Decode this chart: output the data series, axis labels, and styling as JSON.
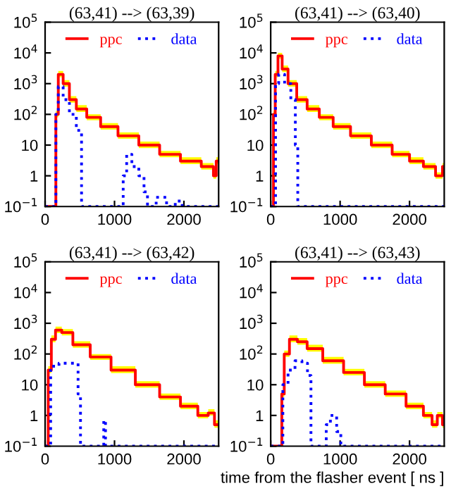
{
  "chart_data": [
    {
      "type": "step",
      "title": "(63,41) --> (63,39)",
      "log": "y",
      "xlim": [
        0,
        2500
      ],
      "ylim": [
        0.1,
        100000
      ],
      "xticks": [
        0,
        1000,
        2000
      ],
      "yticks": [
        {
          "value": 0.1,
          "label": "10$^{−1}$"
        },
        1,
        10,
        {
          "value": 100,
          "label": "10$^{2}$"
        },
        {
          "value": 1000,
          "label": "10$^{3}$"
        },
        {
          "value": 10000,
          "label": "10$^{4}$"
        },
        {
          "value": 100000,
          "label": "10$^{5}$"
        }
      ],
      "legend": "top",
      "grid": false,
      "series": [
        {
          "name": "ppc",
          "color": "#ff0000",
          "line_style": "solid",
          "x": [
            0,
            150,
            160,
            220,
            300,
            400,
            500,
            700,
            900,
            1200,
            1500,
            1800,
            2100,
            2400,
            2450,
            2480,
            2500
          ],
          "values": [
            0.1,
            0.1,
            100,
            2000,
            1000,
            300,
            150,
            80,
            40,
            20,
            10,
            5,
            3,
            2,
            1,
            3,
            3
          ],
          "lower": [
            0.1,
            0.1,
            80,
            1600,
            800,
            240,
            120,
            64,
            32,
            16,
            8,
            4,
            2.4,
            1.6,
            0.8,
            2.4,
            2.4
          ],
          "upper": [
            0.1,
            0.1,
            130,
            2600,
            1300,
            390,
            200,
            100,
            52,
            26,
            13,
            6.5,
            4,
            2.6,
            1.3,
            4,
            4
          ]
        },
        {
          "name": "data",
          "color": "#0000ff",
          "line_style": "dotted",
          "x": [
            0,
            150,
            160,
            220,
            300,
            400,
            500,
            550,
            1100,
            1150,
            1200,
            1300,
            1400,
            1450,
            1500,
            1700,
            1800,
            1950,
            2000,
            2500
          ],
          "values": [
            0.1,
            0.1,
            100,
            800,
            300,
            100,
            30,
            0.1,
            0.1,
            1,
            5,
            2,
            1,
            0.3,
            0.1,
            0.2,
            0.1,
            0.15,
            0.1,
            0.1
          ]
        }
      ]
    },
    {
      "type": "step",
      "title": "(63,41) --> (63,40)",
      "log": "y",
      "xlim": [
        0,
        2500
      ],
      "ylim": [
        0.1,
        100000
      ],
      "xticks": [
        0,
        1000,
        2000
      ],
      "yticks": [
        {
          "value": 0.1,
          "label": "10$^{−1}$"
        },
        1,
        10,
        {
          "value": 100,
          "label": "10$^{2}$"
        },
        {
          "value": 1000,
          "label": "10$^{3}$"
        },
        {
          "value": 10000,
          "label": "10$^{4}$"
        },
        {
          "value": 100000,
          "label": "10$^{5}$"
        }
      ],
      "legend": "top",
      "grid": false,
      "series": [
        {
          "name": "ppc",
          "color": "#ff0000",
          "line_style": "solid",
          "x": [
            0,
            30,
            50,
            80,
            130,
            200,
            300,
            450,
            600,
            800,
            1000,
            1300,
            1600,
            1900,
            2100,
            2300,
            2450,
            2500
          ],
          "values": [
            0.1,
            0.1,
            100,
            2000,
            8000,
            3000,
            1000,
            300,
            150,
            80,
            40,
            20,
            10,
            5,
            3,
            2,
            1,
            2
          ],
          "lower": [
            0.1,
            0.1,
            80,
            1600,
            6400,
            2400,
            800,
            240,
            120,
            64,
            32,
            16,
            8,
            4,
            2.4,
            1.6,
            0.8,
            1.6
          ],
          "upper": [
            0.1,
            0.1,
            130,
            2600,
            10000,
            3900,
            1300,
            390,
            200,
            100,
            52,
            26,
            13,
            6.5,
            4,
            2.6,
            1.3,
            2.6
          ]
        },
        {
          "name": "data",
          "color": "#0000ff",
          "line_style": "dotted",
          "x": [
            0,
            60,
            80,
            150,
            250,
            330,
            380,
            400,
            2500
          ],
          "values": [
            0.1,
            0.1,
            1000,
            2000,
            1000,
            300,
            10,
            0.1,
            0.1
          ]
        }
      ]
    },
    {
      "type": "step",
      "title": "(63,41) --> (63,42)",
      "log": "y",
      "xlim": [
        0,
        2500
      ],
      "ylim": [
        0.1,
        100000
      ],
      "xticks": [
        0,
        1000,
        2000
      ],
      "yticks": [
        {
          "value": 0.1,
          "label": "10$^{−1}$"
        },
        1,
        10,
        {
          "value": 100,
          "label": "10$^{2}$"
        },
        {
          "value": 1000,
          "label": "10$^{3}$"
        },
        {
          "value": 10000,
          "label": "10$^{4}$"
        },
        {
          "value": 100000,
          "label": "10$^{5}$"
        }
      ],
      "legend": "top",
      "grid": false,
      "series": [
        {
          "name": "ppc",
          "color": "#ff0000",
          "line_style": "solid",
          "x": [
            0,
            30,
            60,
            120,
            180,
            300,
            500,
            800,
            1100,
            1500,
            1800,
            2100,
            2300,
            2400,
            2480,
            2500
          ],
          "values": [
            0.1,
            0.1,
            30,
            300,
            600,
            500,
            200,
            80,
            30,
            10,
            4,
            2,
            1,
            1.2,
            0.5,
            0.5
          ],
          "lower": [
            0.1,
            0.1,
            24,
            240,
            480,
            400,
            160,
            64,
            24,
            8,
            3.2,
            1.6,
            0.8,
            1,
            0.4,
            0.4
          ],
          "upper": [
            0.1,
            0.1,
            40,
            400,
            780,
            650,
            260,
            100,
            40,
            13,
            5.2,
            2.6,
            1.3,
            1.6,
            0.7,
            0.7
          ]
        },
        {
          "name": "data",
          "color": "#0000ff",
          "line_style": "dotted",
          "x": [
            0,
            60,
            100,
            300,
            450,
            500,
            520,
            830,
            860,
            880,
            2500
          ],
          "values": [
            0.1,
            0.1,
            40,
            50,
            50,
            5,
            0.1,
            0.1,
            0.7,
            0.1,
            0.1
          ]
        }
      ]
    },
    {
      "type": "step",
      "title": "(63,41) --> (63,43)",
      "xlabel": "time from the flasher event [ ns ]",
      "log": "y",
      "xlim": [
        0,
        2500
      ],
      "ylim": [
        0.1,
        100000
      ],
      "xticks": [
        0,
        1000,
        2000
      ],
      "yticks": [
        {
          "value": 0.1,
          "label": "10$^{−1}$"
        },
        1,
        10,
        {
          "value": 100,
          "label": "10$^{2}$"
        },
        {
          "value": 1000,
          "label": "10$^{3}$"
        },
        {
          "value": 10000,
          "label": "10$^{4}$"
        },
        {
          "value": 100000,
          "label": "10$^{5}$"
        }
      ],
      "legend": "top",
      "grid": false,
      "series": [
        {
          "name": "ppc",
          "color": "#ff0000",
          "line_style": "solid",
          "x": [
            0,
            150,
            170,
            220,
            320,
            450,
            600,
            900,
            1200,
            1500,
            1800,
            2100,
            2300,
            2350,
            2450,
            2500
          ],
          "values": [
            0.1,
            0.1,
            5,
            100,
            300,
            250,
            150,
            60,
            25,
            10,
            5,
            2,
            1,
            0.5,
            1,
            0.5
          ],
          "lower": [
            0.1,
            0.1,
            4,
            80,
            240,
            200,
            120,
            48,
            20,
            8,
            4,
            1.6,
            0.8,
            0.4,
            0.8,
            0.4
          ],
          "upper": [
            0.1,
            0.1,
            6.5,
            130,
            400,
            330,
            200,
            80,
            33,
            13,
            6.5,
            2.6,
            1.3,
            0.7,
            1.3,
            0.7
          ]
        },
        {
          "name": "data",
          "color": "#0000ff",
          "line_style": "dotted",
          "x": [
            0,
            150,
            200,
            300,
            400,
            500,
            560,
            600,
            780,
            820,
            900,
            1000,
            1020,
            2500
          ],
          "values": [
            0.1,
            0.1,
            10,
            30,
            60,
            50,
            20,
            0.1,
            0.1,
            0.5,
            1,
            0.3,
            0.1,
            0.1
          ]
        }
      ]
    }
  ]
}
